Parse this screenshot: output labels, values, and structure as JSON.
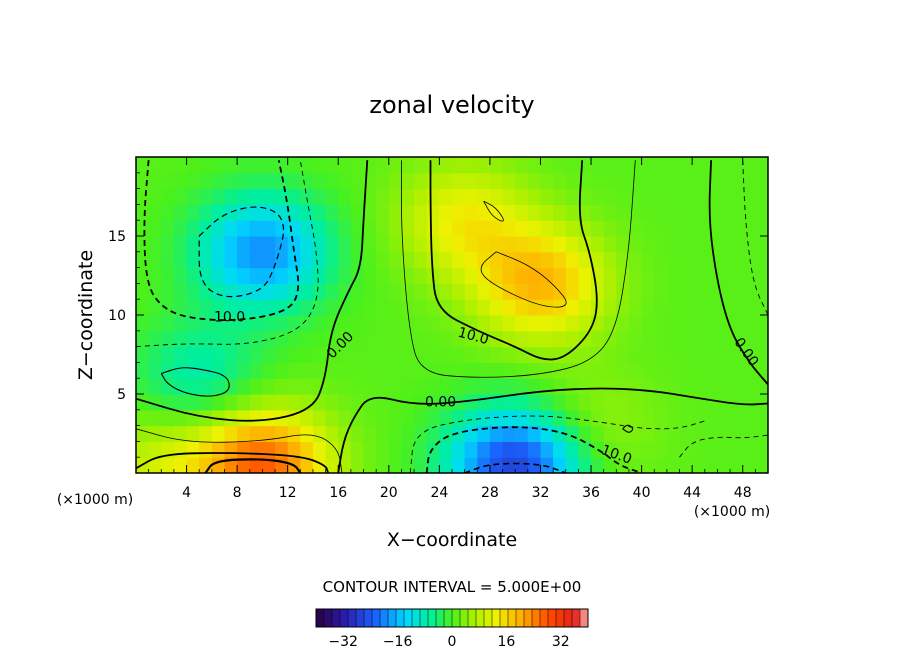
{
  "chart_data": {
    "type": "heatmap",
    "title": "zonal velocity",
    "xlabel": "X−coordinate",
    "ylabel": "Z−coordinate",
    "x_unit_left": "(×1000 m)",
    "x_unit_right": "(×1000 m)",
    "xlim": [
      0,
      50
    ],
    "ylim": [
      0,
      20
    ],
    "xticks": [
      4,
      8,
      12,
      16,
      20,
      24,
      28,
      32,
      36,
      40,
      44,
      48
    ],
    "yticks": [
      5,
      10,
      15
    ],
    "contour_interval_label": "CONTOUR INTERVAL = 5.000E+00",
    "colorbar": {
      "range": [
        -40,
        40
      ],
      "ticks": [
        -32,
        -16,
        0,
        16,
        32
      ]
    },
    "contour_labels": [
      {
        "text": "10.0",
        "x": 7.4,
        "y": 9.6
      },
      {
        "text": "0.00",
        "x": 16.4,
        "y": 7.9
      },
      {
        "text": "10.0",
        "x": 26.6,
        "y": 8.4
      },
      {
        "text": "0.00",
        "x": 24.1,
        "y": 4.2
      },
      {
        "text": "10.0",
        "x": 37.9,
        "y": 0.9
      },
      {
        "text": "0.00",
        "x": 48.0,
        "y": 7.5
      }
    ],
    "features": [
      {
        "x": 10,
        "z": 14,
        "value": -20
      },
      {
        "x": 32,
        "z": 12,
        "value": 18
      },
      {
        "x": 10,
        "z": 0.5,
        "value": 26
      },
      {
        "x": 30,
        "z": 0.5,
        "value": -28
      },
      {
        "x": 5,
        "z": 6,
        "value": -9
      },
      {
        "x": 2,
        "z": 0.5,
        "value": 8
      },
      {
        "x": 26,
        "z": 16,
        "value": 12
      },
      {
        "x": 36,
        "z": 3,
        "value": 5
      }
    ]
  }
}
